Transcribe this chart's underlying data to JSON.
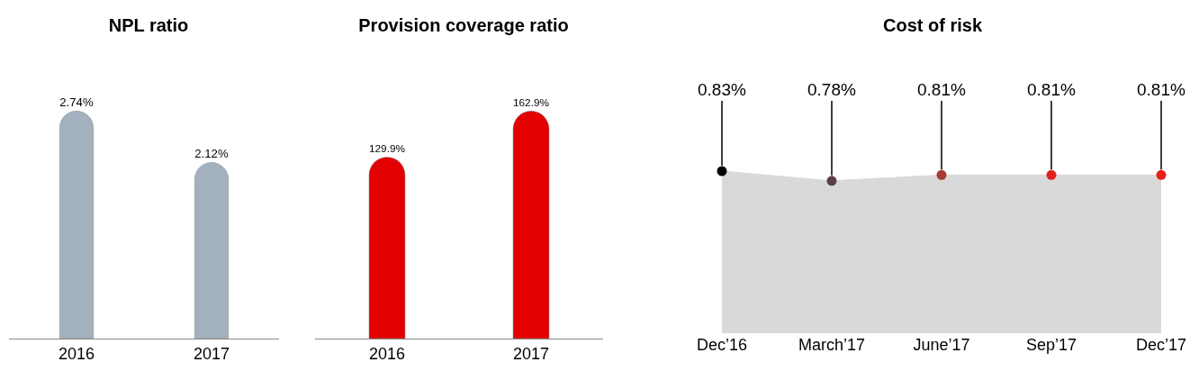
{
  "chart_data": [
    {
      "type": "bar",
      "title": "NPL ratio",
      "categories": [
        "2016",
        "2017"
      ],
      "values": [
        2.74,
        2.12
      ],
      "value_labels": [
        "2.74%",
        "2.12%"
      ],
      "color": "#a2b1bd"
    },
    {
      "type": "bar",
      "title": "Provision coverage ratio",
      "categories": [
        "2016",
        "2017"
      ],
      "values": [
        129.9,
        162.9
      ],
      "value_labels": [
        "129.9%",
        "162.9%"
      ],
      "color": "#e30000"
    },
    {
      "type": "area",
      "title": "Cost of risk",
      "categories": [
        "Dec’16",
        "March’17",
        "June’17",
        "Sep’17",
        "Dec’17"
      ],
      "values": [
        0.83,
        0.78,
        0.81,
        0.81,
        0.81
      ],
      "value_labels": [
        "0.83%",
        "0.78%",
        "0.81%",
        "0.81%",
        "0.81%"
      ],
      "color": "#d9d9d9",
      "colors": [
        "#000000",
        "#5b3f46",
        "#a63a34",
        "#e0211c",
        "#e8201c"
      ],
      "marker": "circle"
    }
  ]
}
